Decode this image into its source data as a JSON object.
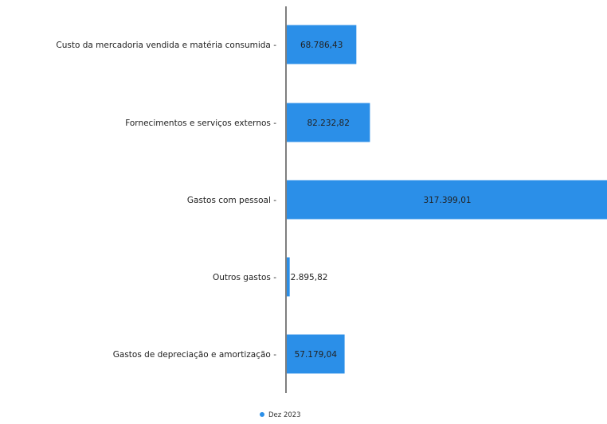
{
  "chart_data": {
    "type": "bar",
    "orientation": "horizontal",
    "categories": [
      "Custo da mercadoria vendida e matéria consumida",
      "Fornecimentos e serviços externos",
      "Gastos com pessoal",
      "Outros gastos",
      "Gastos de depreciação e amortização"
    ],
    "series": [
      {
        "name": "Dez 2023",
        "values": [
          68786.43,
          82232.82,
          317399.01,
          2895.82,
          57179.04
        ],
        "value_labels": [
          "68.786,43",
          "82.232,82",
          "317.399,01",
          "2.895,82",
          "57.179,04"
        ]
      }
    ],
    "xlim": [
      0,
      317399.01
    ],
    "grid": false,
    "legend_position": "bottom-center",
    "colors": {
      "bar": "#2b8fe8",
      "legend_marker": "#2b8fe8",
      "axis": "#555555"
    }
  }
}
